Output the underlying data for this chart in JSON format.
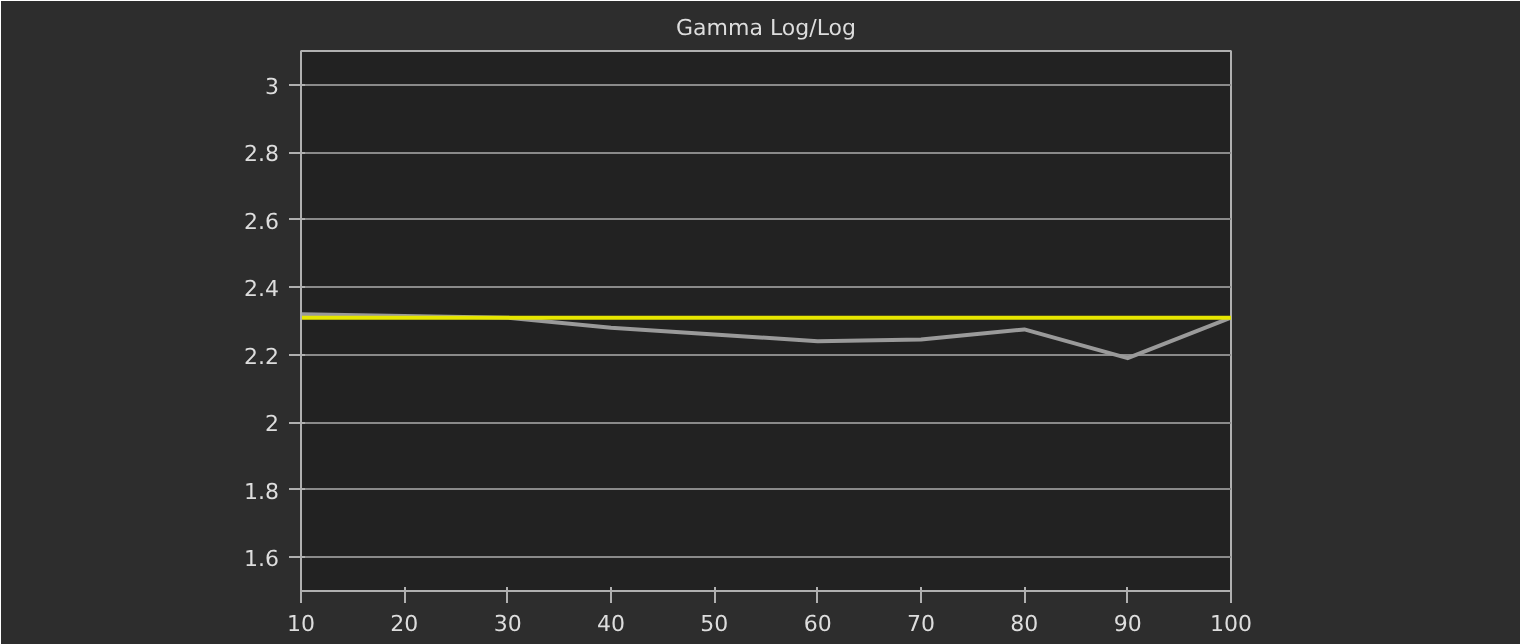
{
  "chart_data": {
    "type": "line",
    "title": "Gamma Log/Log",
    "x": [
      10,
      20,
      30,
      40,
      50,
      60,
      70,
      80,
      90,
      100
    ],
    "series": [
      {
        "color": "#9a9a9a",
        "values": [
          2.32,
          2.315,
          2.31,
          2.28,
          2.26,
          2.24,
          2.245,
          2.275,
          2.19,
          2.31
        ]
      },
      {
        "color": "#e6e600",
        "values": [
          2.31,
          2.31,
          2.31,
          2.31,
          2.31,
          2.31,
          2.31,
          2.31,
          2.31,
          2.31
        ]
      }
    ],
    "xlim": [
      10,
      100
    ],
    "ylim": [
      1.5,
      3.1
    ],
    "xticks": [
      10,
      20,
      30,
      40,
      50,
      60,
      70,
      80,
      90,
      100
    ],
    "yticks": [
      1.6,
      1.8,
      2,
      2.2,
      2.4,
      2.6,
      2.8,
      3
    ],
    "grid": "y",
    "marker": "none",
    "line_style": "solid"
  }
}
